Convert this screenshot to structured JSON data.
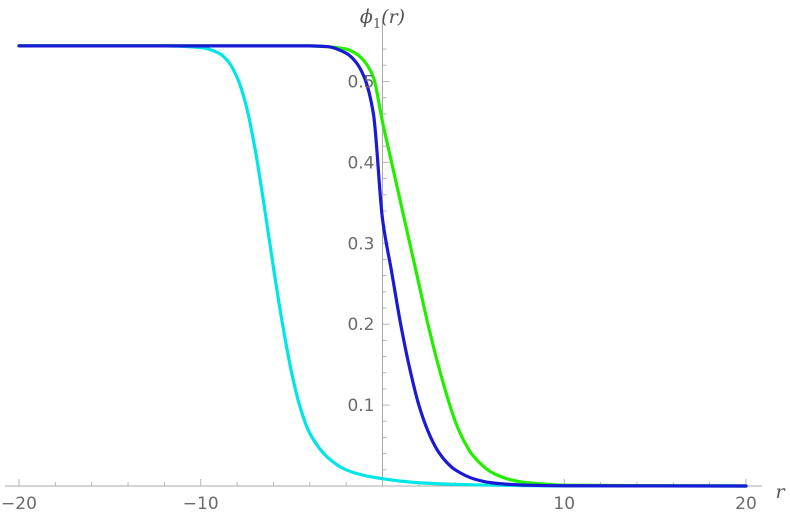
{
  "chart_data": {
    "type": "line",
    "title": "",
    "xlabel": "r",
    "ylabel": "ϕ₁(r)",
    "ylabel_parts": {
      "main": "ϕ",
      "sub": "1",
      "arg": "(r)"
    },
    "xlim": [
      -20,
      20
    ],
    "ylim": [
      0,
      0.55
    ],
    "x_ticks": [
      {
        "value": -20,
        "label": "−20"
      },
      {
        "value": -10,
        "label": "−10"
      },
      {
        "value": 10,
        "label": "10"
      },
      {
        "value": 20,
        "label": "20"
      }
    ],
    "y_ticks": [
      {
        "value": 0.1,
        "label": "0.1"
      },
      {
        "value": 0.2,
        "label": "0.2"
      },
      {
        "value": 0.3,
        "label": "0.3"
      },
      {
        "value": 0.4,
        "label": "0.4"
      },
      {
        "value": 0.5,
        "label": "0.5"
      }
    ],
    "grid": false,
    "legend": "none",
    "series": [
      {
        "color": "#00e5e5",
        "x": [
          -20,
          -12,
          -10,
          -9,
          -8.5,
          -8,
          -7.5,
          -7,
          -6.5,
          -6,
          -5.5,
          -5,
          -4.5,
          -4,
          -3,
          -2,
          -1,
          0,
          1,
          2,
          4,
          6,
          8,
          10,
          20
        ],
        "y": [
          0.544,
          0.544,
          0.542,
          0.535,
          0.525,
          0.505,
          0.47,
          0.415,
          0.345,
          0.27,
          0.2,
          0.14,
          0.095,
          0.065,
          0.035,
          0.02,
          0.013,
          0.009,
          0.006,
          0.004,
          0.002,
          0.001,
          0.0005,
          0.0002,
          0
        ]
      },
      {
        "color": "#22ee00",
        "x": [
          -20,
          -4,
          -3,
          -2,
          -1.5,
          -1,
          -0.5,
          0,
          0.5,
          1,
          1.5,
          2,
          2.5,
          3,
          3.5,
          4,
          4.5,
          5,
          6,
          7,
          8,
          10,
          20
        ],
        "y": [
          0.544,
          0.544,
          0.543,
          0.54,
          0.535,
          0.525,
          0.505,
          0.45,
          0.4,
          0.35,
          0.3,
          0.25,
          0.2,
          0.155,
          0.115,
          0.08,
          0.055,
          0.037,
          0.017,
          0.008,
          0.004,
          0.001,
          0
        ]
      },
      {
        "color": "#1a1ad6",
        "x": [
          -20,
          -4,
          -3,
          -2,
          -1.5,
          -1,
          -0.5,
          0,
          0.5,
          1,
          1.5,
          2,
          2.5,
          3,
          3.5,
          4,
          5,
          6,
          7,
          8,
          10,
          20
        ],
        "y": [
          0.544,
          0.544,
          0.543,
          0.535,
          0.525,
          0.505,
          0.46,
          0.33,
          0.265,
          0.2,
          0.145,
          0.1,
          0.068,
          0.045,
          0.03,
          0.02,
          0.009,
          0.004,
          0.002,
          0.001,
          0.0003,
          0
        ]
      }
    ]
  }
}
